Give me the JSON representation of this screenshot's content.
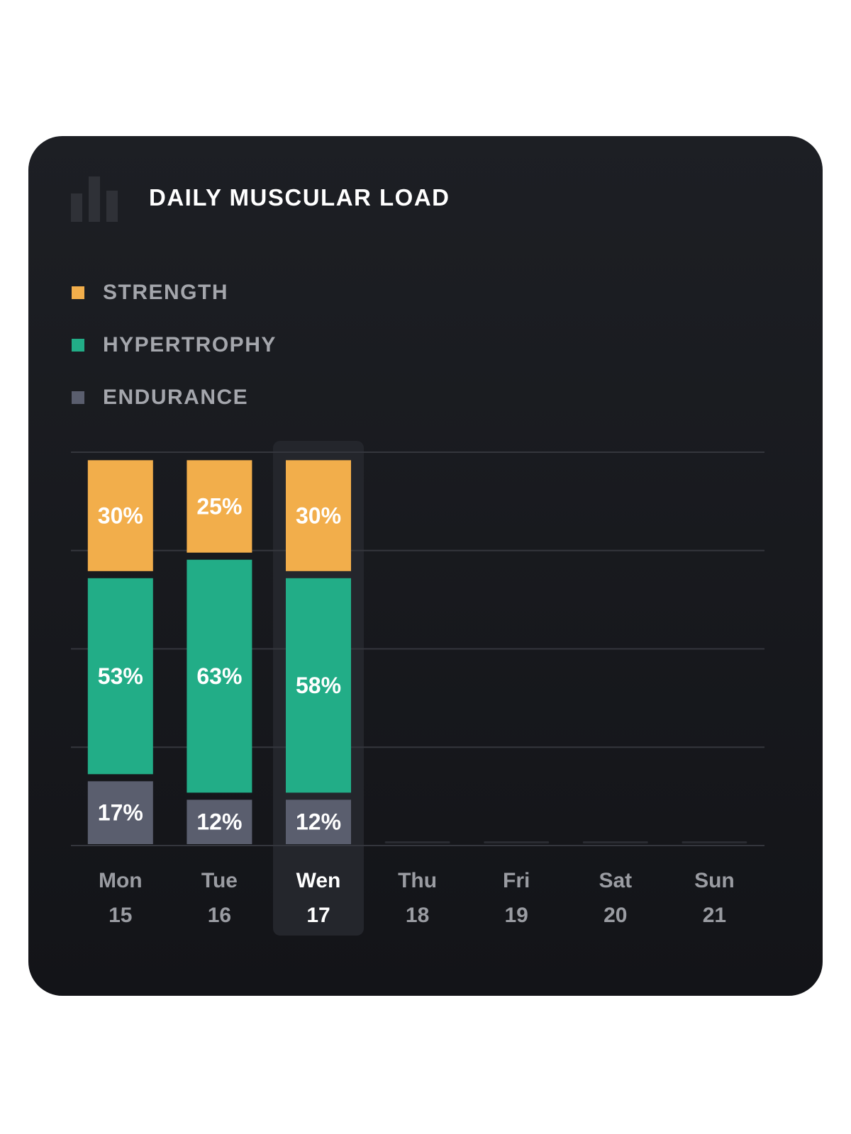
{
  "title": "DAILY MUSCULAR LOAD",
  "colors": {
    "strength": "#f2ae4b",
    "hypertrophy": "#22ad87",
    "endurance": "#5a5e6e",
    "label": "#ffffff",
    "gridline": "#34363d",
    "axis_day": "#9a9ca2",
    "axis_day_active": "#ffffff",
    "highlight": "#24262c"
  },
  "legend": [
    {
      "label": "STRENGTH",
      "color": "#f2ae4b"
    },
    {
      "label": "HYPERTROPHY",
      "color": "#22ad87"
    },
    {
      "label": "ENDURANCE",
      "color": "#5a5e6e"
    }
  ],
  "chart_data": {
    "type": "bar",
    "stacked": true,
    "title": "DAILY MUSCULAR LOAD",
    "categories": [
      {
        "day": "Mon",
        "date": "15"
      },
      {
        "day": "Tue",
        "date": "16"
      },
      {
        "day": "Wen",
        "date": "17"
      },
      {
        "day": "Thu",
        "date": "18"
      },
      {
        "day": "Fri",
        "date": "19"
      },
      {
        "day": "Sat",
        "date": "20"
      },
      {
        "day": "Sun",
        "date": "21"
      }
    ],
    "selected_index": 2,
    "series": [
      {
        "name": "STRENGTH",
        "values": [
          30,
          25,
          30,
          null,
          null,
          null,
          null
        ]
      },
      {
        "name": "HYPERTROPHY",
        "values": [
          53,
          63,
          58,
          null,
          null,
          null,
          null
        ]
      },
      {
        "name": "ENDURANCE",
        "values": [
          17,
          12,
          12,
          null,
          null,
          null,
          null
        ]
      }
    ],
    "value_suffix": "%",
    "ylim": [
      0,
      100
    ],
    "grid": true
  }
}
